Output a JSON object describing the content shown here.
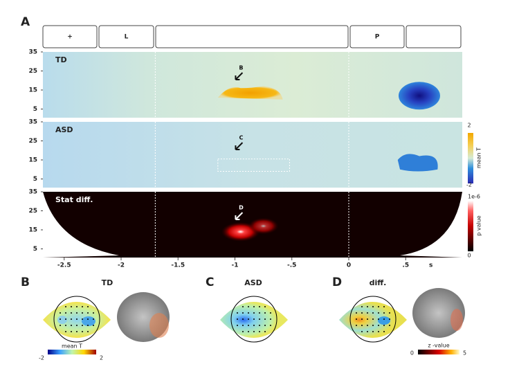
{
  "panel_a": {
    "label": "A",
    "segments": [
      "+",
      "L",
      "P"
    ],
    "panels": [
      {
        "name": "TD",
        "annotation": "B"
      },
      {
        "name": "ASD",
        "annotation": "C"
      },
      {
        "name": "Stat diff.",
        "annotation": "D"
      }
    ],
    "freq_ticks": [
      35,
      25,
      15,
      5
    ],
    "time_ticks": [
      -2.5,
      -2,
      -1.5,
      -1,
      {
        "value": -0.5,
        "label": "-.5"
      },
      0,
      {
        "value": 0.5,
        "label": ".5"
      }
    ],
    "time_unit": "s",
    "colorbar_t": {
      "max": "2",
      "label": "mean T",
      "min": "-2"
    },
    "colorbar_p": {
      "max": "1e-6",
      "label": "p value",
      "min": "0"
    }
  },
  "panel_b": {
    "label": "B",
    "title": "TD",
    "colorbar": {
      "label": "mean T",
      "min": "-2",
      "max": "2"
    }
  },
  "panel_c": {
    "label": "C",
    "title": "ASD"
  },
  "panel_d": {
    "label": "D",
    "title": "diff.",
    "colorbar": {
      "label": "z -value",
      "min": "0",
      "max": "5"
    }
  }
}
